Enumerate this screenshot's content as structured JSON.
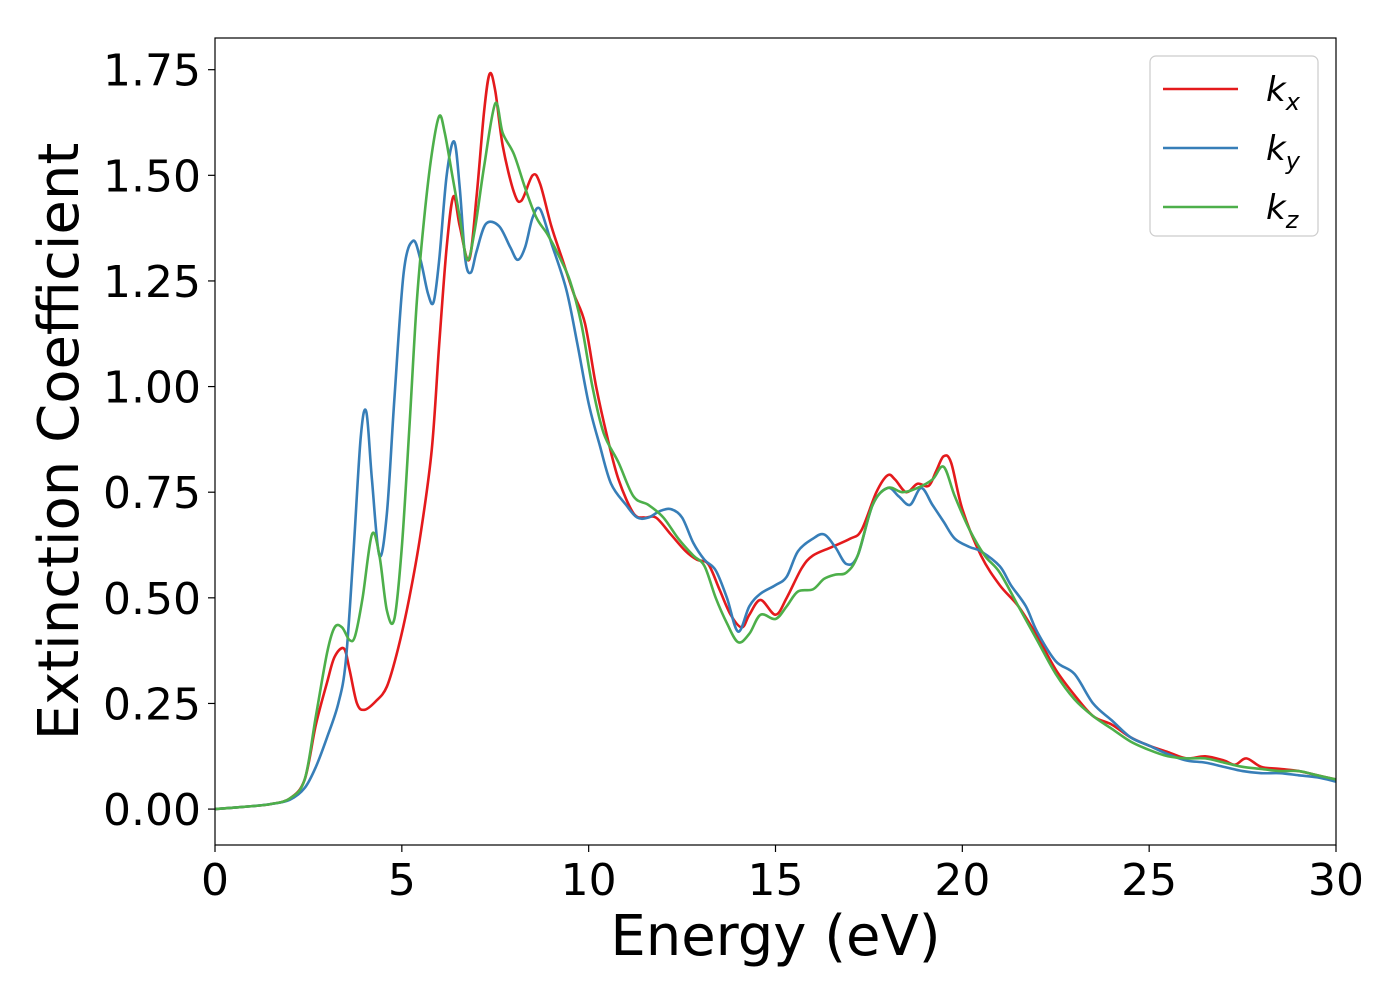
{
  "chart_data": {
    "type": "line",
    "xlabel": "Energy (eV)",
    "ylabel": "Extinction Coefficient",
    "xlim": [
      0,
      30
    ],
    "ylim": [
      -0.085,
      1.825
    ],
    "xticks": [
      0,
      5,
      10,
      15,
      20,
      25,
      30
    ],
    "yticks": [
      0.0,
      0.25,
      0.5,
      0.75,
      1.0,
      1.25,
      1.5,
      1.75
    ],
    "xtick_labels": [
      "0",
      "5",
      "10",
      "15",
      "20",
      "25",
      "30"
    ],
    "ytick_labels": [
      "0.00",
      "0.25",
      "0.50",
      "0.75",
      "1.00",
      "1.25",
      "1.50",
      "1.75"
    ],
    "grid": false,
    "legend_position": "top-right",
    "series": [
      {
        "name": "k",
        "subscript": "x",
        "color": "#e41a1c",
        "points": [
          [
            0,
            0
          ],
          [
            1,
            0.007
          ],
          [
            1.5,
            0.012
          ],
          [
            2,
            0.025
          ],
          [
            2.4,
            0.07
          ],
          [
            2.7,
            0.2
          ],
          [
            3,
            0.3
          ],
          [
            3.2,
            0.36
          ],
          [
            3.45,
            0.38
          ],
          [
            3.6,
            0.33
          ],
          [
            3.8,
            0.25
          ],
          [
            4,
            0.235
          ],
          [
            4.3,
            0.255
          ],
          [
            4.6,
            0.29
          ],
          [
            4.9,
            0.38
          ],
          [
            5.2,
            0.5
          ],
          [
            5.5,
            0.65
          ],
          [
            5.8,
            0.85
          ],
          [
            6,
            1.1
          ],
          [
            6.2,
            1.33
          ],
          [
            6.38,
            1.45
          ],
          [
            6.55,
            1.38
          ],
          [
            6.8,
            1.3
          ],
          [
            7,
            1.45
          ],
          [
            7.2,
            1.65
          ],
          [
            7.35,
            1.74
          ],
          [
            7.5,
            1.7
          ],
          [
            7.7,
            1.57
          ],
          [
            8,
            1.46
          ],
          [
            8.2,
            1.44
          ],
          [
            8.5,
            1.5
          ],
          [
            8.7,
            1.48
          ],
          [
            9,
            1.38
          ],
          [
            9.3,
            1.3
          ],
          [
            9.6,
            1.22
          ],
          [
            9.9,
            1.15
          ],
          [
            10.2,
            1.0
          ],
          [
            10.5,
            0.88
          ],
          [
            10.8,
            0.78
          ],
          [
            11.2,
            0.7
          ],
          [
            11.5,
            0.69
          ],
          [
            11.8,
            0.69
          ],
          [
            12.2,
            0.65
          ],
          [
            12.6,
            0.61
          ],
          [
            12.9,
            0.59
          ],
          [
            13.2,
            0.58
          ],
          [
            13.5,
            0.52
          ],
          [
            13.8,
            0.46
          ],
          [
            14.1,
            0.43
          ],
          [
            14.3,
            0.46
          ],
          [
            14.6,
            0.495
          ],
          [
            15,
            0.46
          ],
          [
            15.3,
            0.5
          ],
          [
            15.7,
            0.57
          ],
          [
            16,
            0.6
          ],
          [
            16.5,
            0.62
          ],
          [
            17,
            0.64
          ],
          [
            17.3,
            0.66
          ],
          [
            17.7,
            0.75
          ],
          [
            18,
            0.79
          ],
          [
            18.2,
            0.78
          ],
          [
            18.5,
            0.75
          ],
          [
            18.8,
            0.77
          ],
          [
            19.1,
            0.765
          ],
          [
            19.3,
            0.8
          ],
          [
            19.5,
            0.835
          ],
          [
            19.7,
            0.82
          ],
          [
            20,
            0.71
          ],
          [
            20.5,
            0.6
          ],
          [
            21,
            0.53
          ],
          [
            21.5,
            0.48
          ],
          [
            22,
            0.41
          ],
          [
            22.5,
            0.33
          ],
          [
            23,
            0.27
          ],
          [
            23.5,
            0.22
          ],
          [
            24,
            0.2
          ],
          [
            24.5,
            0.17
          ],
          [
            25,
            0.15
          ],
          [
            25.5,
            0.135
          ],
          [
            26,
            0.12
          ],
          [
            26.5,
            0.125
          ],
          [
            27,
            0.115
          ],
          [
            27.3,
            0.105
          ],
          [
            27.6,
            0.12
          ],
          [
            28,
            0.1
          ],
          [
            28.5,
            0.095
          ],
          [
            29,
            0.09
          ],
          [
            29.5,
            0.08
          ],
          [
            30,
            0.07
          ]
        ]
      },
      {
        "name": "k",
        "subscript": "y",
        "color": "#377eb8",
        "points": [
          [
            0,
            0
          ],
          [
            1,
            0.007
          ],
          [
            1.5,
            0.012
          ],
          [
            2,
            0.022
          ],
          [
            2.4,
            0.05
          ],
          [
            2.7,
            0.1
          ],
          [
            3,
            0.17
          ],
          [
            3.3,
            0.25
          ],
          [
            3.5,
            0.35
          ],
          [
            3.7,
            0.6
          ],
          [
            3.9,
            0.88
          ],
          [
            4.05,
            0.94
          ],
          [
            4.2,
            0.78
          ],
          [
            4.4,
            0.6
          ],
          [
            4.6,
            0.7
          ],
          [
            4.8,
            0.97
          ],
          [
            5.05,
            1.27
          ],
          [
            5.3,
            1.345
          ],
          [
            5.5,
            1.3
          ],
          [
            5.7,
            1.22
          ],
          [
            5.85,
            1.2
          ],
          [
            6,
            1.3
          ],
          [
            6.2,
            1.5
          ],
          [
            6.4,
            1.58
          ],
          [
            6.55,
            1.47
          ],
          [
            6.7,
            1.3
          ],
          [
            6.85,
            1.27
          ],
          [
            7,
            1.32
          ],
          [
            7.25,
            1.385
          ],
          [
            7.6,
            1.38
          ],
          [
            7.9,
            1.33
          ],
          [
            8.1,
            1.3
          ],
          [
            8.3,
            1.33
          ],
          [
            8.5,
            1.4
          ],
          [
            8.7,
            1.42
          ],
          [
            9,
            1.34
          ],
          [
            9.4,
            1.23
          ],
          [
            9.7,
            1.1
          ],
          [
            10,
            0.96
          ],
          [
            10.3,
            0.86
          ],
          [
            10.6,
            0.77
          ],
          [
            11,
            0.72
          ],
          [
            11.3,
            0.69
          ],
          [
            11.6,
            0.69
          ],
          [
            11.9,
            0.705
          ],
          [
            12.2,
            0.71
          ],
          [
            12.5,
            0.69
          ],
          [
            12.8,
            0.63
          ],
          [
            13.1,
            0.59
          ],
          [
            13.4,
            0.565
          ],
          [
            13.7,
            0.5
          ],
          [
            14,
            0.42
          ],
          [
            14.3,
            0.48
          ],
          [
            14.6,
            0.51
          ],
          [
            15,
            0.53
          ],
          [
            15.3,
            0.55
          ],
          [
            15.6,
            0.61
          ],
          [
            16,
            0.64
          ],
          [
            16.3,
            0.65
          ],
          [
            16.6,
            0.62
          ],
          [
            16.9,
            0.58
          ],
          [
            17.2,
            0.6
          ],
          [
            17.6,
            0.72
          ],
          [
            18,
            0.76
          ],
          [
            18.3,
            0.74
          ],
          [
            18.6,
            0.72
          ],
          [
            18.9,
            0.76
          ],
          [
            19.2,
            0.72
          ],
          [
            19.5,
            0.68
          ],
          [
            19.8,
            0.64
          ],
          [
            20.2,
            0.62
          ],
          [
            20.5,
            0.61
          ],
          [
            21,
            0.575
          ],
          [
            21.3,
            0.53
          ],
          [
            21.7,
            0.48
          ],
          [
            22,
            0.42
          ],
          [
            22.5,
            0.35
          ],
          [
            23,
            0.32
          ],
          [
            23.5,
            0.25
          ],
          [
            24,
            0.21
          ],
          [
            24.5,
            0.17
          ],
          [
            25,
            0.15
          ],
          [
            25.5,
            0.13
          ],
          [
            26,
            0.115
          ],
          [
            26.5,
            0.11
          ],
          [
            27,
            0.1
          ],
          [
            27.5,
            0.09
          ],
          [
            28,
            0.085
          ],
          [
            28.5,
            0.085
          ],
          [
            29,
            0.08
          ],
          [
            29.5,
            0.075
          ],
          [
            30,
            0.065
          ]
        ]
      },
      {
        "name": "k",
        "subscript": "z",
        "color": "#4daf4a",
        "points": [
          [
            0,
            0
          ],
          [
            1,
            0.007
          ],
          [
            1.5,
            0.012
          ],
          [
            2,
            0.025
          ],
          [
            2.4,
            0.07
          ],
          [
            2.7,
            0.22
          ],
          [
            3,
            0.37
          ],
          [
            3.2,
            0.43
          ],
          [
            3.4,
            0.43
          ],
          [
            3.6,
            0.4
          ],
          [
            3.75,
            0.41
          ],
          [
            3.95,
            0.5
          ],
          [
            4.2,
            0.65
          ],
          [
            4.4,
            0.6
          ],
          [
            4.6,
            0.47
          ],
          [
            4.8,
            0.45
          ],
          [
            5,
            0.62
          ],
          [
            5.2,
            0.9
          ],
          [
            5.4,
            1.2
          ],
          [
            5.6,
            1.4
          ],
          [
            5.8,
            1.55
          ],
          [
            6,
            1.64
          ],
          [
            6.15,
            1.6
          ],
          [
            6.35,
            1.5
          ],
          [
            6.55,
            1.4
          ],
          [
            6.75,
            1.3
          ],
          [
            6.95,
            1.37
          ],
          [
            7.2,
            1.52
          ],
          [
            7.5,
            1.67
          ],
          [
            7.7,
            1.6
          ],
          [
            8,
            1.55
          ],
          [
            8.3,
            1.47
          ],
          [
            8.6,
            1.4
          ],
          [
            8.9,
            1.36
          ],
          [
            9.2,
            1.31
          ],
          [
            9.5,
            1.25
          ],
          [
            9.8,
            1.15
          ],
          [
            10.1,
            1.0
          ],
          [
            10.4,
            0.89
          ],
          [
            10.8,
            0.82
          ],
          [
            11.2,
            0.74
          ],
          [
            11.6,
            0.72
          ],
          [
            12,
            0.69
          ],
          [
            12.4,
            0.64
          ],
          [
            12.8,
            0.6
          ],
          [
            13.1,
            0.575
          ],
          [
            13.4,
            0.5
          ],
          [
            13.7,
            0.44
          ],
          [
            14,
            0.395
          ],
          [
            14.3,
            0.415
          ],
          [
            14.6,
            0.46
          ],
          [
            15,
            0.45
          ],
          [
            15.3,
            0.48
          ],
          [
            15.6,
            0.515
          ],
          [
            16,
            0.52
          ],
          [
            16.3,
            0.545
          ],
          [
            16.6,
            0.555
          ],
          [
            16.9,
            0.56
          ],
          [
            17.2,
            0.6
          ],
          [
            17.6,
            0.72
          ],
          [
            18,
            0.76
          ],
          [
            18.4,
            0.75
          ],
          [
            18.8,
            0.76
          ],
          [
            19.2,
            0.78
          ],
          [
            19.5,
            0.81
          ],
          [
            19.8,
            0.74
          ],
          [
            20.2,
            0.66
          ],
          [
            20.6,
            0.6
          ],
          [
            21,
            0.56
          ],
          [
            21.5,
            0.48
          ],
          [
            22,
            0.4
          ],
          [
            22.5,
            0.32
          ],
          [
            23,
            0.26
          ],
          [
            23.5,
            0.22
          ],
          [
            24,
            0.19
          ],
          [
            24.5,
            0.16
          ],
          [
            25,
            0.14
          ],
          [
            25.5,
            0.125
          ],
          [
            26,
            0.12
          ],
          [
            26.5,
            0.12
          ],
          [
            27,
            0.11
          ],
          [
            27.5,
            0.1
          ],
          [
            28,
            0.095
          ],
          [
            28.5,
            0.09
          ],
          [
            29,
            0.09
          ],
          [
            29.5,
            0.08
          ],
          [
            30,
            0.07
          ]
        ]
      }
    ]
  }
}
